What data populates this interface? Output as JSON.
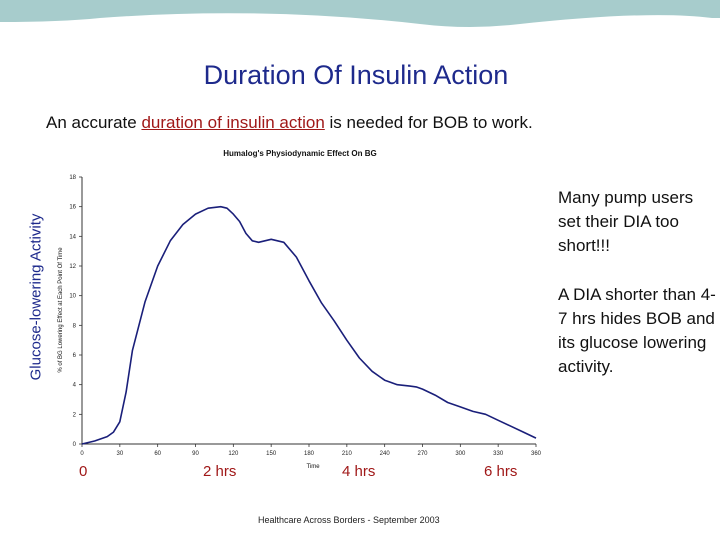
{
  "slide": {
    "title": "Duration Of Insulin Action",
    "subtitle_pre": "An accurate ",
    "subtitle_link": "duration of insulin action",
    "subtitle_post": " is needed for BOB to work.",
    "side_label": "Glucose-lowering Activity",
    "note_1": "Many pump users set their DIA too short!!!",
    "note_2": "A DIA shorter than 4-7 hrs hides BOB and its glucose lowering activity.",
    "hour_labels": [
      "0",
      "2 hrs",
      "4 hrs",
      "6 hrs"
    ],
    "footer": "Healthcare Across Borders  -  September 2003",
    "colors": {
      "band": "#a7cccc",
      "title": "#1e2a8c",
      "curve": "#1a1f7a",
      "accent": "#a01818"
    }
  },
  "chart_data": {
    "type": "line",
    "title": "Humalog's Physiodynamic Effect On BG",
    "xlabel": "Time",
    "ylabel": "% of BG Lowering Effect at Each Point Of Time",
    "xlim": [
      0,
      360
    ],
    "ylim": [
      0,
      18
    ],
    "x_ticks": [
      0,
      30,
      60,
      90,
      120,
      150,
      180,
      210,
      240,
      270,
      300,
      330,
      360
    ],
    "y_ticks": [
      0,
      2,
      4,
      6,
      8,
      10,
      12,
      14,
      16,
      18
    ],
    "x_tick_labels": [
      "0",
      "30",
      "60",
      "90",
      "120",
      "150",
      "180",
      "210",
      "240",
      "270",
      "300",
      "330",
      "360"
    ],
    "y_tick_labels": [
      "0",
      "2",
      "4",
      "6",
      "8",
      "10",
      "12",
      "14",
      "16",
      "18"
    ],
    "series": [
      {
        "name": "Humalog",
        "x": [
          0,
          10,
          20,
          25,
          30,
          35,
          40,
          50,
          60,
          70,
          80,
          90,
          100,
          110,
          115,
          120,
          125,
          130,
          135,
          140,
          150,
          160,
          170,
          180,
          190,
          200,
          210,
          220,
          230,
          240,
          250,
          260,
          265,
          270,
          280,
          290,
          300,
          310,
          320,
          330,
          340,
          350,
          360
        ],
        "y": [
          0,
          0.2,
          0.5,
          0.8,
          1.5,
          3.5,
          6.3,
          9.6,
          12.0,
          13.7,
          14.8,
          15.5,
          15.9,
          16.0,
          15.9,
          15.5,
          15.0,
          14.2,
          13.7,
          13.6,
          13.8,
          13.6,
          12.6,
          11.0,
          9.5,
          8.3,
          7.0,
          5.8,
          4.9,
          4.3,
          4.0,
          3.9,
          3.85,
          3.7,
          3.3,
          2.8,
          2.5,
          2.2,
          2.0,
          1.6,
          1.2,
          0.8,
          0.4
        ]
      }
    ],
    "grid": false,
    "legend": "none"
  }
}
